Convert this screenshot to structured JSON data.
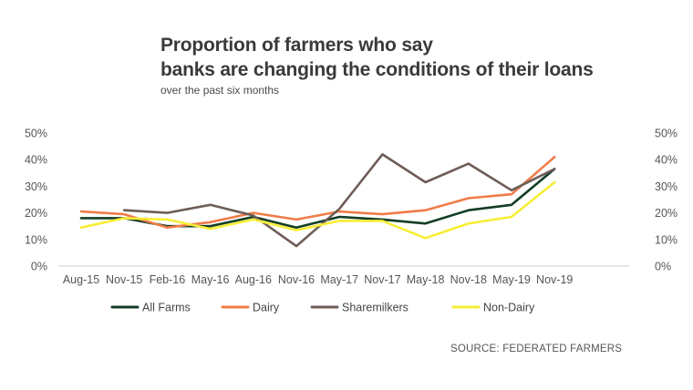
{
  "chart_data": {
    "type": "line",
    "title_line1": "Proportion of farmers who say",
    "title_line2": "banks are changing the conditions of their loans",
    "subtitle": "over the past six months",
    "categories": [
      "Aug-15",
      "Nov-15",
      "Feb-16",
      "May-16",
      "Aug-16",
      "Nov-16",
      "May-17",
      "Nov-17",
      "May-18",
      "Nov-18",
      "May-19",
      "Nov-19"
    ],
    "y_ticks": [
      "0%",
      "10%",
      "20%",
      "30%",
      "40%",
      "50%"
    ],
    "ylim": [
      0,
      50
    ],
    "grid": false,
    "legend_position": "bottom",
    "series": [
      {
        "name": "All Farms",
        "color": "#133d26",
        "values": [
          18,
          18,
          15,
          15,
          18.5,
          14.5,
          18.5,
          17.5,
          16,
          21,
          23,
          36.5
        ]
      },
      {
        "name": "Dairy",
        "color": "#f07c4a",
        "values": [
          20.5,
          19.5,
          14.5,
          16.5,
          20,
          17.5,
          20.5,
          19.5,
          21,
          25.5,
          27,
          41
        ]
      },
      {
        "name": "Sharemilkers",
        "color": "#6e5d57",
        "values": [
          null,
          21,
          20,
          23,
          19,
          7.5,
          21.5,
          42,
          31.5,
          38.5,
          28.5,
          36.5
        ]
      },
      {
        "name": "Non-Dairy",
        "color": "#f7ee35",
        "values": [
          14.5,
          18,
          17.5,
          14,
          17.5,
          13.5,
          17,
          17,
          10.5,
          16,
          18.5,
          31.5
        ]
      }
    ],
    "source": "SOURCE: FEDERATED FARMERS"
  }
}
